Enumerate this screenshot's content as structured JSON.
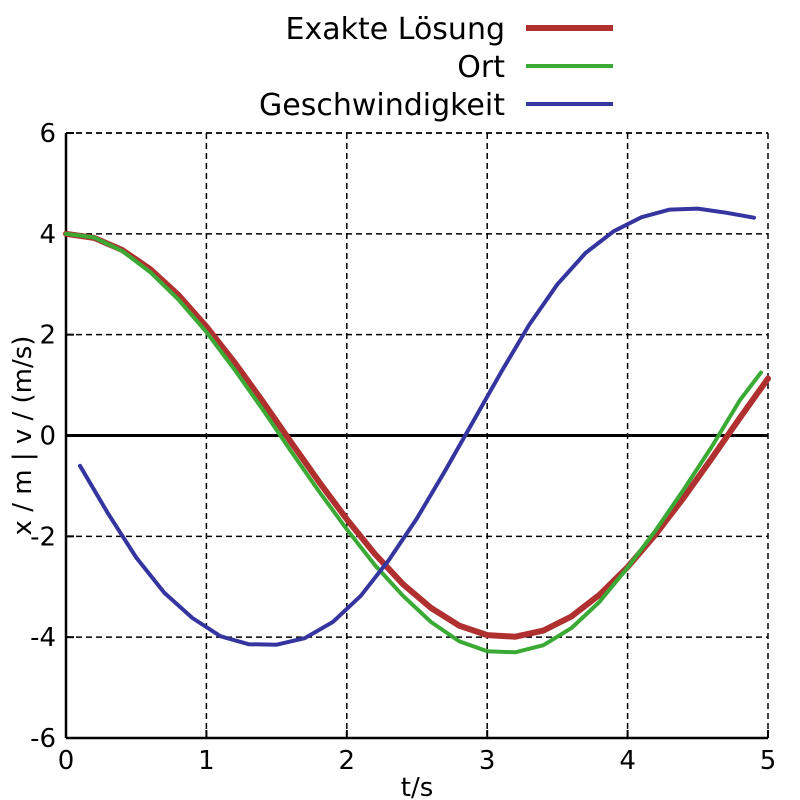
{
  "chart_data": {
    "type": "line",
    "title": "",
    "xlabel": "t/s",
    "ylabel": "x / m | v / (m/s)",
    "xlim": [
      0,
      5
    ],
    "ylim": [
      -6,
      6
    ],
    "xticks": [
      0,
      1,
      2,
      3,
      4,
      5
    ],
    "yticks": [
      -6,
      -4,
      -2,
      0,
      2,
      4,
      6
    ],
    "xtick_labels": [
      "0",
      "1",
      "2",
      "3",
      "4",
      "5"
    ],
    "ytick_labels": [
      "-6",
      "-4",
      "-2",
      "0",
      "2",
      "4",
      "6"
    ],
    "grid": true,
    "legend_position": "top-right",
    "series": [
      {
        "name": "Exakte Lösung",
        "color": "#b03030",
        "x": [
          0,
          0.2,
          0.4,
          0.6,
          0.8,
          1.0,
          1.2,
          1.4,
          1.6,
          1.8,
          2.0,
          2.2,
          2.4,
          2.6,
          2.8,
          3.0,
          3.2,
          3.4,
          3.6,
          3.8,
          4.0,
          4.2,
          4.4,
          4.6,
          4.8,
          5.0
        ],
        "y": [
          4.0,
          3.92,
          3.68,
          3.3,
          2.79,
          2.16,
          1.45,
          0.68,
          -0.12,
          -0.91,
          -1.66,
          -2.35,
          -2.95,
          -3.42,
          -3.77,
          -3.96,
          -3.99,
          -3.87,
          -3.59,
          -3.16,
          -2.61,
          -1.96,
          -1.23,
          -0.45,
          0.35,
          1.13
        ]
      },
      {
        "name": "Ort",
        "color": "#3aaa35",
        "x": [
          0,
          0.2,
          0.4,
          0.6,
          0.8,
          1.0,
          1.2,
          1.4,
          1.6,
          1.8,
          2.0,
          2.2,
          2.4,
          2.6,
          2.8,
          3.0,
          3.2,
          3.4,
          3.6,
          3.8,
          4.0,
          4.2,
          4.4,
          4.6,
          4.8,
          4.95
        ],
        "y": [
          4.0,
          3.93,
          3.66,
          3.24,
          2.7,
          2.05,
          1.31,
          0.52,
          -0.3,
          -1.1,
          -1.86,
          -2.57,
          -3.18,
          -3.7,
          -4.08,
          -4.28,
          -4.3,
          -4.16,
          -3.82,
          -3.3,
          -2.62,
          -1.88,
          -1.07,
          -0.22,
          0.7,
          1.25
        ]
      },
      {
        "name": "Geschwindigkeit",
        "color": "#3535a0",
        "x": [
          0.1,
          0.3,
          0.5,
          0.7,
          0.9,
          1.1,
          1.3,
          1.5,
          1.7,
          1.9,
          2.1,
          2.3,
          2.5,
          2.7,
          2.9,
          3.1,
          3.3,
          3.5,
          3.7,
          3.9,
          4.1,
          4.3,
          4.5,
          4.7,
          4.9
        ],
        "y": [
          -0.6,
          -1.55,
          -2.42,
          -3.12,
          -3.62,
          -3.98,
          -4.14,
          -4.15,
          -4.02,
          -3.7,
          -3.18,
          -2.47,
          -1.64,
          -0.7,
          0.28,
          1.26,
          2.2,
          3.0,
          3.62,
          4.05,
          4.33,
          4.48,
          4.5,
          4.42,
          4.32
        ]
      }
    ]
  }
}
